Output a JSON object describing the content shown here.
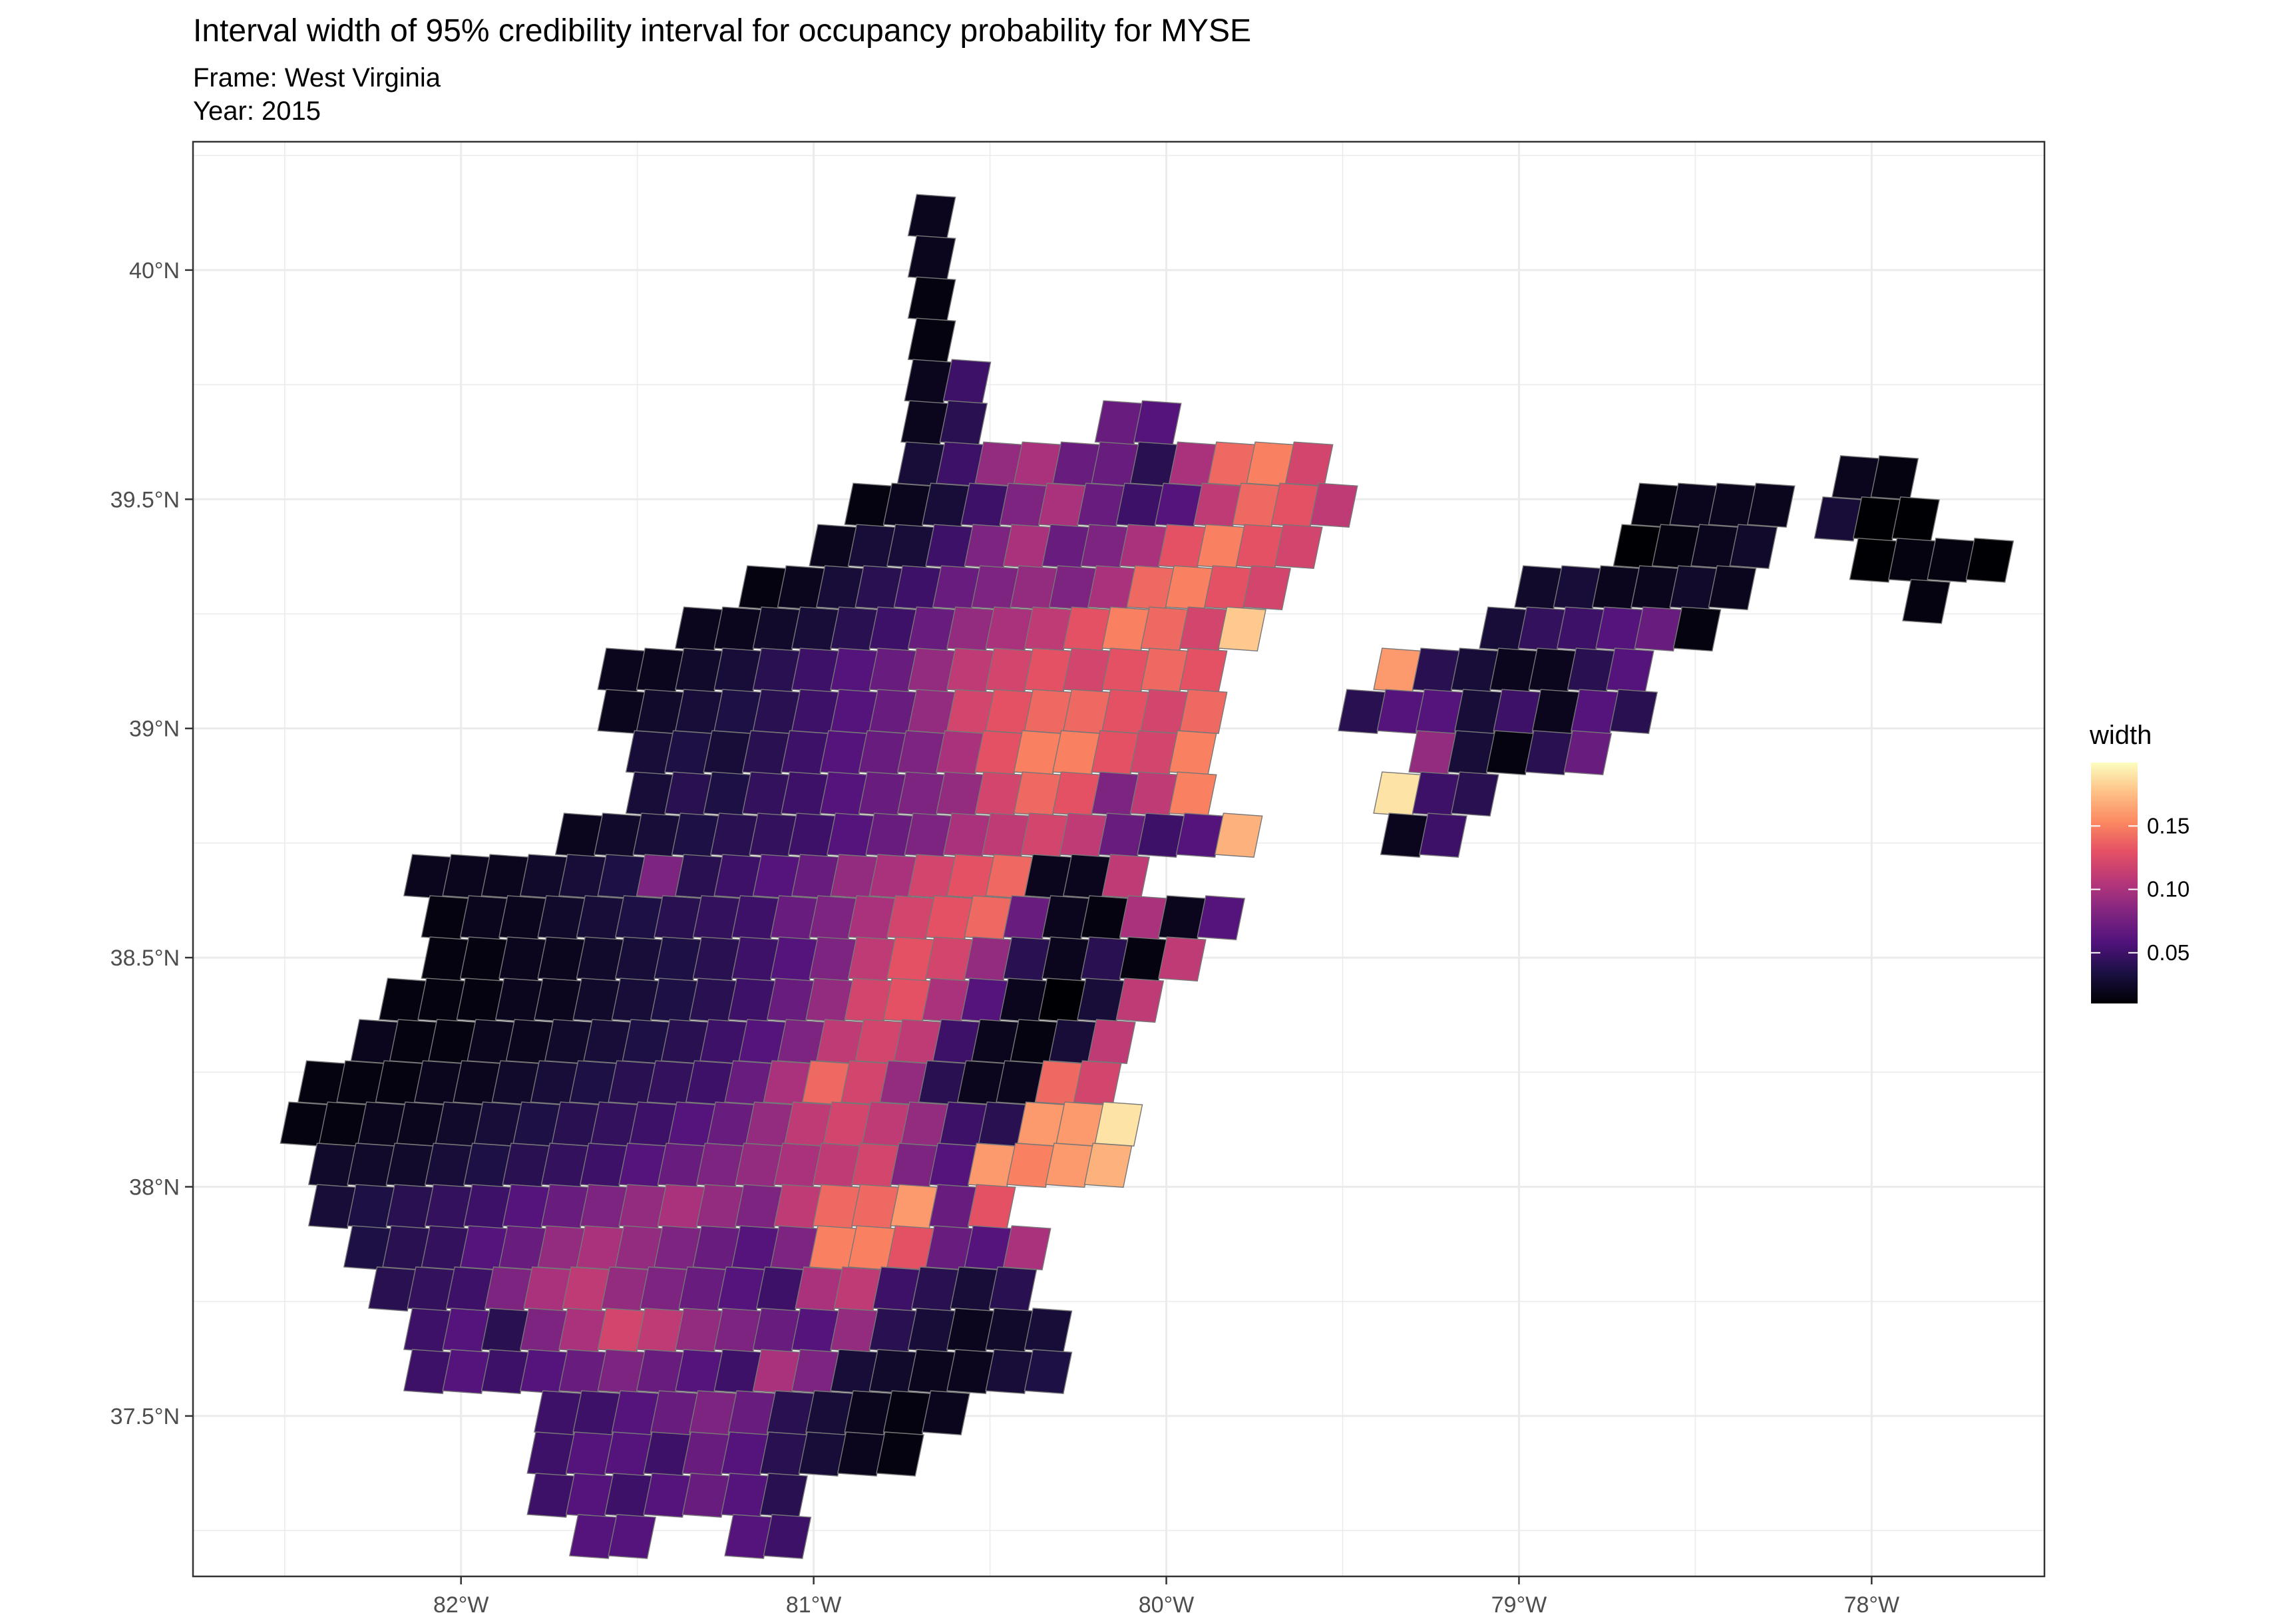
{
  "chart_data": {
    "type": "heatmap",
    "title": "Interval width of 95% credibility interval for occupancy probability for MYSE",
    "subtitle_lines": [
      "Frame: West Virginia",
      "Year: 2015"
    ],
    "xlabel": "",
    "ylabel": "",
    "x_ticks": [
      "82°W",
      "81°W",
      "80°W",
      "79°W",
      "78°W"
    ],
    "x_tick_values": [
      -82,
      -81,
      -80,
      -79,
      -78
    ],
    "y_ticks": [
      "40°N",
      "39.5°N",
      "39°N",
      "38.5°N",
      "38°N",
      "37.5°N"
    ],
    "y_tick_values": [
      40,
      39.5,
      39,
      38.5,
      38,
      37.5
    ],
    "xlim": [
      -82.76,
      -77.51
    ],
    "ylim": [
      37.15,
      40.28
    ],
    "grid": true,
    "legend": {
      "title": "width",
      "position": "right",
      "ticks": [
        "0.15",
        "0.10",
        "0.05"
      ],
      "tick_values": [
        0.15,
        0.1,
        0.05
      ],
      "range": [
        0.01,
        0.2
      ]
    },
    "colormap": "magma",
    "colors": {
      "panel_border": "#333333",
      "grid": "#ebebeb",
      "cell_outline": "#777777"
    },
    "cell_size_deg": {
      "lon": 0.11,
      "lat": 0.09
    },
    "cells": [
      {
        "lat": 40.12,
        "lon_start": -80.72,
        "values": [
          0.02
        ]
      },
      {
        "lat": 40.03,
        "lon_start": -80.72,
        "values": [
          0.02
        ]
      },
      {
        "lat": 39.94,
        "lon_start": -80.72,
        "values": [
          0.015
        ]
      },
      {
        "lat": 39.85,
        "lon_start": -80.72,
        "values": [
          0.015
        ]
      },
      {
        "lat": 39.76,
        "lon_start": -80.73,
        "values": [
          0.02,
          0.05
        ]
      },
      {
        "lat": 39.67,
        "lon_start": -80.74,
        "values": [
          0.02,
          0.04,
          0,
          0,
          0,
          0.07,
          0.06
        ]
      },
      {
        "lat": 39.58,
        "lon_start": -80.75,
        "values": [
          0.03,
          0.05,
          0.09,
          0.1,
          0.07,
          0.07,
          0.04,
          0.1,
          0.14,
          0.15,
          0.12
        ]
      },
      {
        "lat": 39.49,
        "lon_start": -80.9,
        "values": [
          0.015,
          0.02,
          0.03,
          0.05,
          0.08,
          0.1,
          0.07,
          0.05,
          0.06,
          0.11,
          0.14,
          0.13,
          0.11
        ]
      },
      {
        "lat": 39.4,
        "lon_start": -81.0,
        "values": [
          0.02,
          0.03,
          0.03,
          0.05,
          0.08,
          0.1,
          0.07,
          0.08,
          0.1,
          0.13,
          0.15,
          0.13,
          0.12
        ]
      },
      {
        "lat": 39.31,
        "lon_start": -81.2,
        "values": [
          0.015,
          0.02,
          0.03,
          0.04,
          0.05,
          0.07,
          0.08,
          0.09,
          0.08,
          0.1,
          0.14,
          0.15,
          0.13,
          0.12
        ]
      },
      {
        "lat": 39.22,
        "lon_start": -81.38,
        "values": [
          0.02,
          0.02,
          0.025,
          0.03,
          0.04,
          0.05,
          0.07,
          0.09,
          0.1,
          0.11,
          0.13,
          0.15,
          0.14,
          0.12,
          0.18
        ]
      },
      {
        "lat": 39.13,
        "lon_start": -81.6,
        "values": [
          0.02,
          0.02,
          0.025,
          0.03,
          0.04,
          0.05,
          0.06,
          0.07,
          0.09,
          0.11,
          0.12,
          0.13,
          0.12,
          0.13,
          0.14,
          0.13
        ]
      },
      {
        "lat": 39.04,
        "lon_start": -81.6,
        "values": [
          0.02,
          0.025,
          0.03,
          0.035,
          0.04,
          0.05,
          0.06,
          0.07,
          0.09,
          0.12,
          0.13,
          0.14,
          0.14,
          0.13,
          0.12,
          0.14
        ]
      },
      {
        "lat": 38.95,
        "lon_start": -81.52,
        "values": [
          0.03,
          0.035,
          0.03,
          0.04,
          0.05,
          0.06,
          0.07,
          0.08,
          0.1,
          0.13,
          0.15,
          0.15,
          0.13,
          0.12,
          0.15
        ]
      },
      {
        "lat": 38.86,
        "lon_start": -81.52,
        "values": [
          0.03,
          0.04,
          0.035,
          0.045,
          0.05,
          0.06,
          0.07,
          0.08,
          0.09,
          0.12,
          0.14,
          0.13,
          0.08,
          0.11,
          0.15
        ]
      },
      {
        "lat": 38.77,
        "lon_start": -81.72,
        "values": [
          0.02,
          0.025,
          0.03,
          0.035,
          0.04,
          0.045,
          0.05,
          0.06,
          0.07,
          0.08,
          0.1,
          0.11,
          0.12,
          0.11,
          0.07,
          0.05,
          0.06,
          0.17
        ]
      },
      {
        "lat": 38.68,
        "lon_start": -82.15,
        "values": [
          0.02,
          0.02,
          0.02,
          0.025,
          0.03,
          0.035,
          0.08,
          0.04,
          0.05,
          0.06,
          0.07,
          0.09,
          0.1,
          0.12,
          0.13,
          0.14,
          0.02,
          0.02,
          0.11
        ]
      },
      {
        "lat": 38.59,
        "lon_start": -82.1,
        "values": [
          0.015,
          0.02,
          0.02,
          0.025,
          0.03,
          0.035,
          0.04,
          0.045,
          0.05,
          0.07,
          0.08,
          0.1,
          0.12,
          0.13,
          0.14,
          0.07,
          0.02,
          0.015,
          0.1,
          0.02,
          0.06
        ]
      },
      {
        "lat": 38.5,
        "lon_start": -82.1,
        "values": [
          0.015,
          0.015,
          0.02,
          0.02,
          0.025,
          0.03,
          0.035,
          0.04,
          0.05,
          0.06,
          0.08,
          0.11,
          0.13,
          0.12,
          0.09,
          0.04,
          0.02,
          0.04,
          0.015,
          0.11
        ]
      },
      {
        "lat": 38.41,
        "lon_start": -82.22,
        "values": [
          0.015,
          0.015,
          0.015,
          0.02,
          0.02,
          0.025,
          0.03,
          0.035,
          0.04,
          0.05,
          0.07,
          0.09,
          0.12,
          0.13,
          0.1,
          0.06,
          0.02,
          0.01,
          0.03,
          0.11
        ]
      },
      {
        "lat": 38.32,
        "lon_start": -82.3,
        "values": [
          0.02,
          0.015,
          0.015,
          0.02,
          0.02,
          0.025,
          0.03,
          0.035,
          0.04,
          0.05,
          0.06,
          0.08,
          0.11,
          0.12,
          0.11,
          0.05,
          0.02,
          0.015,
          0.03,
          0.11
        ]
      },
      {
        "lat": 38.23,
        "lon_start": -82.45,
        "values": [
          0.015,
          0.015,
          0.015,
          0.02,
          0.02,
          0.025,
          0.03,
          0.035,
          0.04,
          0.045,
          0.05,
          0.07,
          0.1,
          0.14,
          0.12,
          0.09,
          0.04,
          0.02,
          0.02,
          0.14,
          0.12
        ]
      },
      {
        "lat": 38.14,
        "lon_start": -82.5,
        "values": [
          0.015,
          0.015,
          0.02,
          0.02,
          0.025,
          0.03,
          0.035,
          0.04,
          0.045,
          0.05,
          0.06,
          0.07,
          0.09,
          0.11,
          0.12,
          0.11,
          0.09,
          0.05,
          0.04,
          0.16,
          0.16,
          0.19
        ]
      },
      {
        "lat": 38.05,
        "lon_start": -82.42,
        "values": [
          0.025,
          0.025,
          0.025,
          0.03,
          0.035,
          0.04,
          0.045,
          0.05,
          0.06,
          0.07,
          0.08,
          0.09,
          0.1,
          0.11,
          0.12,
          0.08,
          0.06,
          0.16,
          0.15,
          0.16,
          0.17
        ]
      },
      {
        "lat": 37.96,
        "lon_start": -82.42,
        "values": [
          0.03,
          0.035,
          0.04,
          0.045,
          0.05,
          0.06,
          0.07,
          0.08,
          0.09,
          0.1,
          0.09,
          0.08,
          0.11,
          0.14,
          0.14,
          0.16,
          0.07,
          0.13
        ]
      },
      {
        "lat": 37.87,
        "lon_start": -82.32,
        "values": [
          0.035,
          0.04,
          0.045,
          0.06,
          0.07,
          0.09,
          0.1,
          0.09,
          0.08,
          0.07,
          0.06,
          0.08,
          0.15,
          0.15,
          0.13,
          0.07,
          0.06,
          0.1
        ]
      },
      {
        "lat": 37.78,
        "lon_start": -82.25,
        "values": [
          0.04,
          0.045,
          0.05,
          0.08,
          0.1,
          0.11,
          0.09,
          0.08,
          0.07,
          0.06,
          0.05,
          0.1,
          0.11,
          0.05,
          0.04,
          0.03,
          0.04
        ]
      },
      {
        "lat": 37.69,
        "lon_start": -82.15,
        "values": [
          0.05,
          0.06,
          0.04,
          0.08,
          0.1,
          0.12,
          0.11,
          0.09,
          0.08,
          0.07,
          0.06,
          0.09,
          0.04,
          0.03,
          0.02,
          0.025,
          0.03
        ]
      },
      {
        "lat": 37.6,
        "lon_start": -82.15,
        "values": [
          0.05,
          0.06,
          0.05,
          0.06,
          0.07,
          0.08,
          0.07,
          0.06,
          0.05,
          0.1,
          0.08,
          0.03,
          0.025,
          0.02,
          0.02,
          0.03,
          0.035
        ]
      },
      {
        "lat": 37.51,
        "lon_start": -81.78,
        "values": [
          0.05,
          0.05,
          0.06,
          0.07,
          0.08,
          0.07,
          0.04,
          0.03,
          0.02,
          0.015,
          0.02
        ]
      },
      {
        "lat": 37.42,
        "lon_start": -81.8,
        "values": [
          0.05,
          0.06,
          0.06,
          0.05,
          0.07,
          0.06,
          0.04,
          0.03,
          0.02,
          0.015
        ]
      },
      {
        "lat": 37.33,
        "lon_start": -81.8,
        "values": [
          0.05,
          0.06,
          0.05,
          0.06,
          0.07,
          0.06,
          0.04
        ]
      },
      {
        "lat": 37.24,
        "lon_start": -81.68,
        "values": [
          0.06,
          0.06,
          0,
          0,
          0.06,
          0.05
        ]
      },
      {
        "lat": 39.49,
        "lon_start": -78.67,
        "values": [
          0.015,
          0.02,
          0.02,
          0.02
        ]
      },
      {
        "lat": 39.4,
        "lon_start": -78.72,
        "values": [
          0.01,
          0.015,
          0.02,
          0.025
        ]
      },
      {
        "lat": 39.31,
        "lon_start": -79.0,
        "values": [
          0.025,
          0.03,
          0.02,
          0.02,
          0.025,
          0.02
        ]
      },
      {
        "lat": 39.22,
        "lon_start": -79.1,
        "values": [
          0.03,
          0.045,
          0.05,
          0.06,
          0.07,
          0.015
        ]
      },
      {
        "lat": 39.13,
        "lon_start": -79.4,
        "values": [
          0.16,
          0.04,
          0.03,
          0.02,
          0.02,
          0.04,
          0.06
        ]
      },
      {
        "lat": 39.04,
        "lon_start": -79.5,
        "values": [
          0.04,
          0.06,
          0.06,
          0.03,
          0.05,
          0.02,
          0.06,
          0.04
        ]
      },
      {
        "lat": 38.95,
        "lon_start": -79.3,
        "values": [
          0.09,
          0.03,
          0.015,
          0.04,
          0.07
        ]
      },
      {
        "lat": 38.86,
        "lon_start": -79.4,
        "values": [
          0.19,
          0.05,
          0.04
        ]
      },
      {
        "lat": 38.77,
        "lon_start": -79.38,
        "values": [
          0.02,
          0.05
        ]
      },
      {
        "lat": 39.55,
        "lon_start": -78.1,
        "values": [
          0.02,
          0.015
        ]
      },
      {
        "lat": 39.46,
        "lon_start": -78.15,
        "values": [
          0.03,
          0.01,
          0.01
        ]
      },
      {
        "lat": 39.37,
        "lon_start": -78.05,
        "values": [
          0.01,
          0.015,
          0.015,
          0.01
        ]
      },
      {
        "lat": 39.28,
        "lon_start": -77.9,
        "values": [
          0.015
        ]
      }
    ]
  }
}
